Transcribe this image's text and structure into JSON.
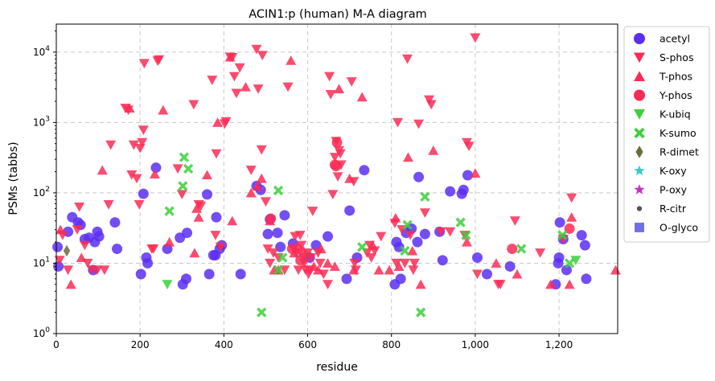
{
  "chart_data": {
    "type": "scatter",
    "title": "ACIN1:p (human) M-A diagram",
    "xlabel": "residue",
    "ylabel": "PSMs (tabbs)",
    "xlim": [
      0,
      1340
    ],
    "ylim": [
      1,
      25000
    ],
    "yscale": "log",
    "x_ticks": [
      0,
      200,
      400,
      600,
      800,
      1000,
      1200
    ],
    "x_tick_labels": [
      "0",
      "200",
      "400",
      "600",
      "800",
      "1,000",
      "1,200"
    ],
    "y_ticks": [
      1,
      10,
      100,
      1000,
      10000
    ],
    "y_tick_labels": [
      "10^0",
      "10^1",
      "10^2",
      "10^3",
      "10^4"
    ],
    "grid": "dashed",
    "legend_position": "outside-right",
    "series": [
      {
        "name": "acetyl",
        "marker": "circle",
        "color": "#5b2ff2",
        "points": [
          [
            3,
            17
          ],
          [
            5,
            9
          ],
          [
            28,
            28
          ],
          [
            38,
            45
          ],
          [
            52,
            38
          ],
          [
            58,
            35
          ],
          [
            68,
            22
          ],
          [
            78,
            23
          ],
          [
            88,
            8
          ],
          [
            92,
            20
          ],
          [
            98,
            28
          ],
          [
            102,
            24
          ],
          [
            140,
            38
          ],
          [
            145,
            16
          ],
          [
            202,
            7
          ],
          [
            208,
            97
          ],
          [
            215,
            12
          ],
          [
            218,
            10
          ],
          [
            238,
            228
          ],
          [
            265,
            16
          ],
          [
            295,
            23
          ],
          [
            302,
            5
          ],
          [
            310,
            6
          ],
          [
            312,
            27
          ],
          [
            360,
            95
          ],
          [
            365,
            7
          ],
          [
            375,
            13
          ],
          [
            380,
            13
          ],
          [
            382,
            45
          ],
          [
            390,
            16
          ],
          [
            395,
            18
          ],
          [
            440,
            7
          ],
          [
            478,
            125
          ],
          [
            488,
            110
          ],
          [
            505,
            26
          ],
          [
            510,
            42
          ],
          [
            528,
            27
          ],
          [
            535,
            17
          ],
          [
            545,
            48
          ],
          [
            565,
            19
          ],
          [
            605,
            12
          ],
          [
            620,
            18
          ],
          [
            648,
            24
          ],
          [
            693,
            6
          ],
          [
            700,
            56
          ],
          [
            718,
            12
          ],
          [
            735,
            210
          ],
          [
            808,
            5
          ],
          [
            812,
            20
          ],
          [
            818,
            17
          ],
          [
            822,
            6
          ],
          [
            835,
            27
          ],
          [
            848,
            31
          ],
          [
            862,
            20
          ],
          [
            865,
            168
          ],
          [
            880,
            26
          ],
          [
            915,
            28
          ],
          [
            922,
            11
          ],
          [
            940,
            105
          ],
          [
            968,
            97
          ],
          [
            972,
            110
          ],
          [
            982,
            178
          ],
          [
            1005,
            12
          ],
          [
            1028,
            7
          ],
          [
            1083,
            9
          ],
          [
            1192,
            5
          ],
          [
            1198,
            10
          ],
          [
            1200,
            12
          ],
          [
            1202,
            38
          ],
          [
            1210,
            22
          ],
          [
            1218,
            8
          ],
          [
            1254,
            25
          ],
          [
            1262,
            18
          ],
          [
            1265,
            6
          ]
        ]
      },
      {
        "name": "S-phos",
        "marker": "triangle-down",
        "color": "#fa2b55",
        "points": [
          [
            8,
            11
          ],
          [
            15,
            25
          ],
          [
            28,
            8
          ],
          [
            50,
            30
          ],
          [
            55,
            63
          ],
          [
            68,
            18
          ],
          [
            75,
            10
          ],
          [
            85,
            8
          ],
          [
            98,
            8
          ],
          [
            115,
            8
          ],
          [
            125,
            68
          ],
          [
            130,
            480
          ],
          [
            165,
            1600
          ],
          [
            172,
            1500
          ],
          [
            180,
            180
          ],
          [
            185,
            480
          ],
          [
            192,
            160
          ],
          [
            198,
            68
          ],
          [
            200,
            430
          ],
          [
            205,
            520
          ],
          [
            208,
            780
          ],
          [
            210,
            6900
          ],
          [
            228,
            16
          ],
          [
            232,
            16
          ],
          [
            242,
            7500
          ],
          [
            245,
            7800
          ],
          [
            290,
            220
          ],
          [
            300,
            95
          ],
          [
            328,
            1800
          ],
          [
            340,
            68
          ],
          [
            345,
            65
          ],
          [
            372,
            4000
          ],
          [
            380,
            25
          ],
          [
            382,
            360
          ],
          [
            392,
            17
          ],
          [
            402,
            960
          ],
          [
            405,
            1030
          ],
          [
            415,
            8500
          ],
          [
            420,
            8400
          ],
          [
            425,
            4500
          ],
          [
            430,
            2600
          ],
          [
            438,
            6000
          ],
          [
            465,
            210
          ],
          [
            478,
            11000
          ],
          [
            482,
            3000
          ],
          [
            490,
            410
          ],
          [
            492,
            9000
          ],
          [
            500,
            75
          ],
          [
            505,
            16
          ],
          [
            510,
            10
          ],
          [
            518,
            14
          ],
          [
            530,
            12
          ],
          [
            545,
            8
          ],
          [
            553,
            3200
          ],
          [
            570,
            24
          ],
          [
            572,
            14
          ],
          [
            578,
            8
          ],
          [
            582,
            25
          ],
          [
            585,
            18
          ],
          [
            590,
            12
          ],
          [
            592,
            10
          ],
          [
            595,
            8
          ],
          [
            600,
            14
          ],
          [
            602,
            7
          ],
          [
            605,
            8
          ],
          [
            608,
            12
          ],
          [
            612,
            55
          ],
          [
            625,
            14
          ],
          [
            630,
            10
          ],
          [
            638,
            7
          ],
          [
            648,
            5
          ],
          [
            652,
            4500
          ],
          [
            655,
            2500
          ],
          [
            660,
            95
          ],
          [
            665,
            320
          ],
          [
            668,
            540
          ],
          [
            672,
            170
          ],
          [
            675,
            400
          ],
          [
            678,
            360
          ],
          [
            680,
            250
          ],
          [
            705,
            3800
          ],
          [
            710,
            145
          ],
          [
            712,
            10
          ],
          [
            715,
            8
          ],
          [
            742,
            14
          ],
          [
            748,
            18
          ],
          [
            752,
            12
          ],
          [
            760,
            15
          ],
          [
            775,
            24
          ],
          [
            808,
            37
          ],
          [
            812,
            10
          ],
          [
            815,
            1000
          ],
          [
            825,
            30
          ],
          [
            832,
            10
          ],
          [
            838,
            8000
          ],
          [
            845,
            25
          ],
          [
            852,
            8
          ],
          [
            855,
            10
          ],
          [
            865,
            950
          ],
          [
            880,
            52
          ],
          [
            890,
            2100
          ],
          [
            895,
            1800
          ],
          [
            918,
            28
          ],
          [
            940,
            28
          ],
          [
            975,
            25
          ],
          [
            980,
            520
          ],
          [
            985,
            460
          ],
          [
            1000,
            16000
          ],
          [
            1005,
            7
          ],
          [
            1055,
            5
          ],
          [
            1060,
            5
          ],
          [
            1095,
            40
          ],
          [
            1155,
            14
          ],
          [
            1210,
            22
          ],
          [
            1230,
            85
          ]
        ]
      },
      {
        "name": "T-phos",
        "marker": "triangle-up",
        "color": "#fa2b55",
        "points": [
          [
            10,
            30
          ],
          [
            35,
            5
          ],
          [
            60,
            12
          ],
          [
            110,
            210
          ],
          [
            175,
            1600
          ],
          [
            235,
            185
          ],
          [
            255,
            1500
          ],
          [
            270,
            20
          ],
          [
            330,
            14
          ],
          [
            335,
            60
          ],
          [
            340,
            45
          ],
          [
            360,
            180
          ],
          [
            385,
            1000
          ],
          [
            415,
            8500
          ],
          [
            420,
            40
          ],
          [
            452,
            3200
          ],
          [
            465,
            100
          ],
          [
            480,
            125
          ],
          [
            490,
            160
          ],
          [
            510,
            40
          ],
          [
            520,
            8
          ],
          [
            530,
            8
          ],
          [
            560,
            7600
          ],
          [
            568,
            14
          ],
          [
            590,
            15
          ],
          [
            615,
            9
          ],
          [
            625,
            8
          ],
          [
            632,
            16
          ],
          [
            648,
            10
          ],
          [
            665,
            9
          ],
          [
            675,
            3000
          ],
          [
            700,
            160
          ],
          [
            710,
            8
          ],
          [
            730,
            2300
          ],
          [
            755,
            18
          ],
          [
            770,
            8
          ],
          [
            795,
            8
          ],
          [
            810,
            44
          ],
          [
            818,
            9
          ],
          [
            840,
            320
          ],
          [
            850,
            15
          ],
          [
            870,
            5
          ],
          [
            900,
            400
          ],
          [
            980,
            20
          ],
          [
            1000,
            190
          ],
          [
            1050,
            10
          ],
          [
            1100,
            7
          ],
          [
            1180,
            5
          ],
          [
            1225,
            5
          ],
          [
            1230,
            45
          ],
          [
            1335,
            8
          ]
        ]
      },
      {
        "name": "Y-phos",
        "marker": "circle",
        "color": "#fa2b55",
        "points": [
          [
            512,
            43
          ],
          [
            563,
            16
          ],
          [
            575,
            16
          ],
          [
            583,
            11
          ],
          [
            665,
            250
          ],
          [
            668,
            240
          ],
          [
            670,
            520
          ],
          [
            1088,
            16
          ],
          [
            1225,
            31
          ]
        ]
      },
      {
        "name": "K-ubiq",
        "marker": "triangle-down",
        "color": "#3ccf3c",
        "points": [
          [
            265,
            5
          ],
          [
            1240,
            11
          ]
        ]
      },
      {
        "name": "K-sumo",
        "marker": "x",
        "color": "#3ccf3c",
        "points": [
          [
            270,
            55
          ],
          [
            302,
            125
          ],
          [
            305,
            320
          ],
          [
            315,
            220
          ],
          [
            490,
            2
          ],
          [
            530,
            108
          ],
          [
            530,
            8
          ],
          [
            540,
            12
          ],
          [
            730,
            17
          ],
          [
            832,
            15
          ],
          [
            838,
            35
          ],
          [
            870,
            2
          ],
          [
            880,
            88
          ],
          [
            965,
            38
          ],
          [
            978,
            25
          ],
          [
            1110,
            16
          ],
          [
            1208,
            25
          ],
          [
            1225,
            10
          ]
        ]
      },
      {
        "name": "R-dimet",
        "marker": "diamond",
        "color": "#6b6b3c",
        "points": [
          [
            25,
            15
          ]
        ]
      },
      {
        "name": "K-oxy",
        "marker": "star",
        "color": "#3fc8c8",
        "points": []
      },
      {
        "name": "P-oxy",
        "marker": "star",
        "color": "#c832c8",
        "points": []
      },
      {
        "name": "R-citr",
        "marker": "small-circle",
        "color": "#555555",
        "points": []
      },
      {
        "name": "O-glyco",
        "marker": "square",
        "color": "#7070e6",
        "points": []
      }
    ]
  }
}
